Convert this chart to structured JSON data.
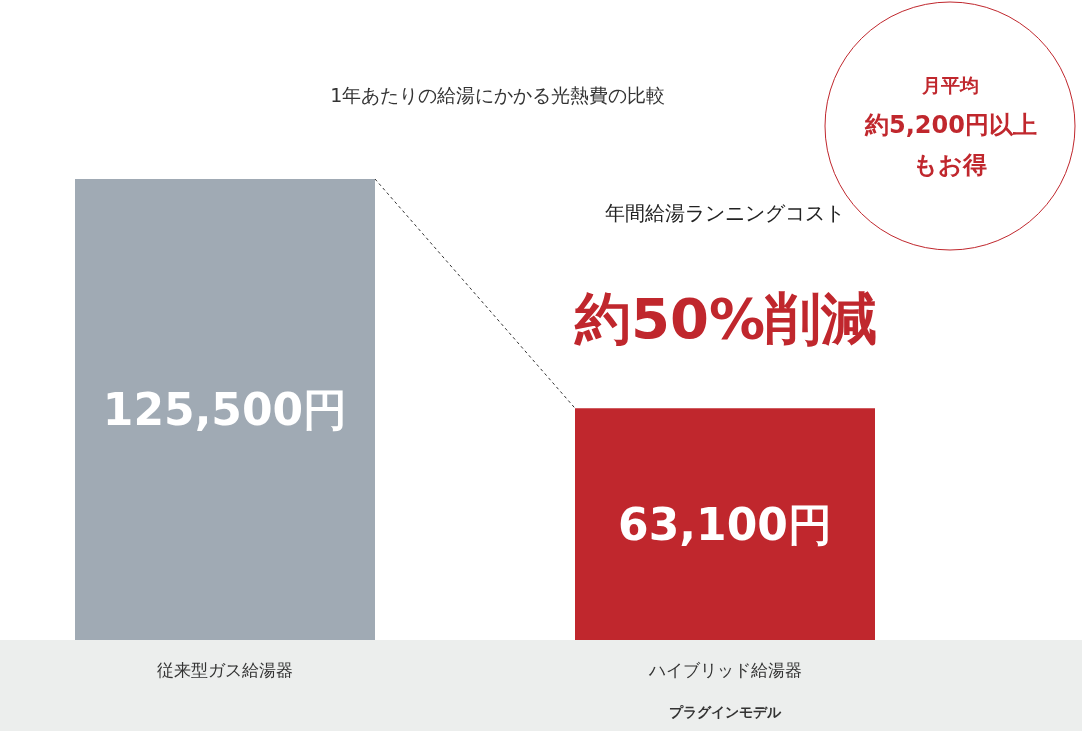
{
  "chart_data": {
    "type": "bar",
    "title": "1年あたりの給湯にかかる光熱費の比較",
    "categories": [
      "従来型ガス給湯器",
      "ハイブリッド給湯器"
    ],
    "values": [
      125500,
      63100
    ],
    "colors": [
      "#a0aab4",
      "#c0272d"
    ],
    "value_labels": [
      "125,500円",
      "63,100円"
    ],
    "annotations": [
      "プラグインモデル",
      "年間給湯ランニングコスト",
      "約50%削減",
      "月平均",
      "約5,200円以上",
      "もお得"
    ]
  }
}
